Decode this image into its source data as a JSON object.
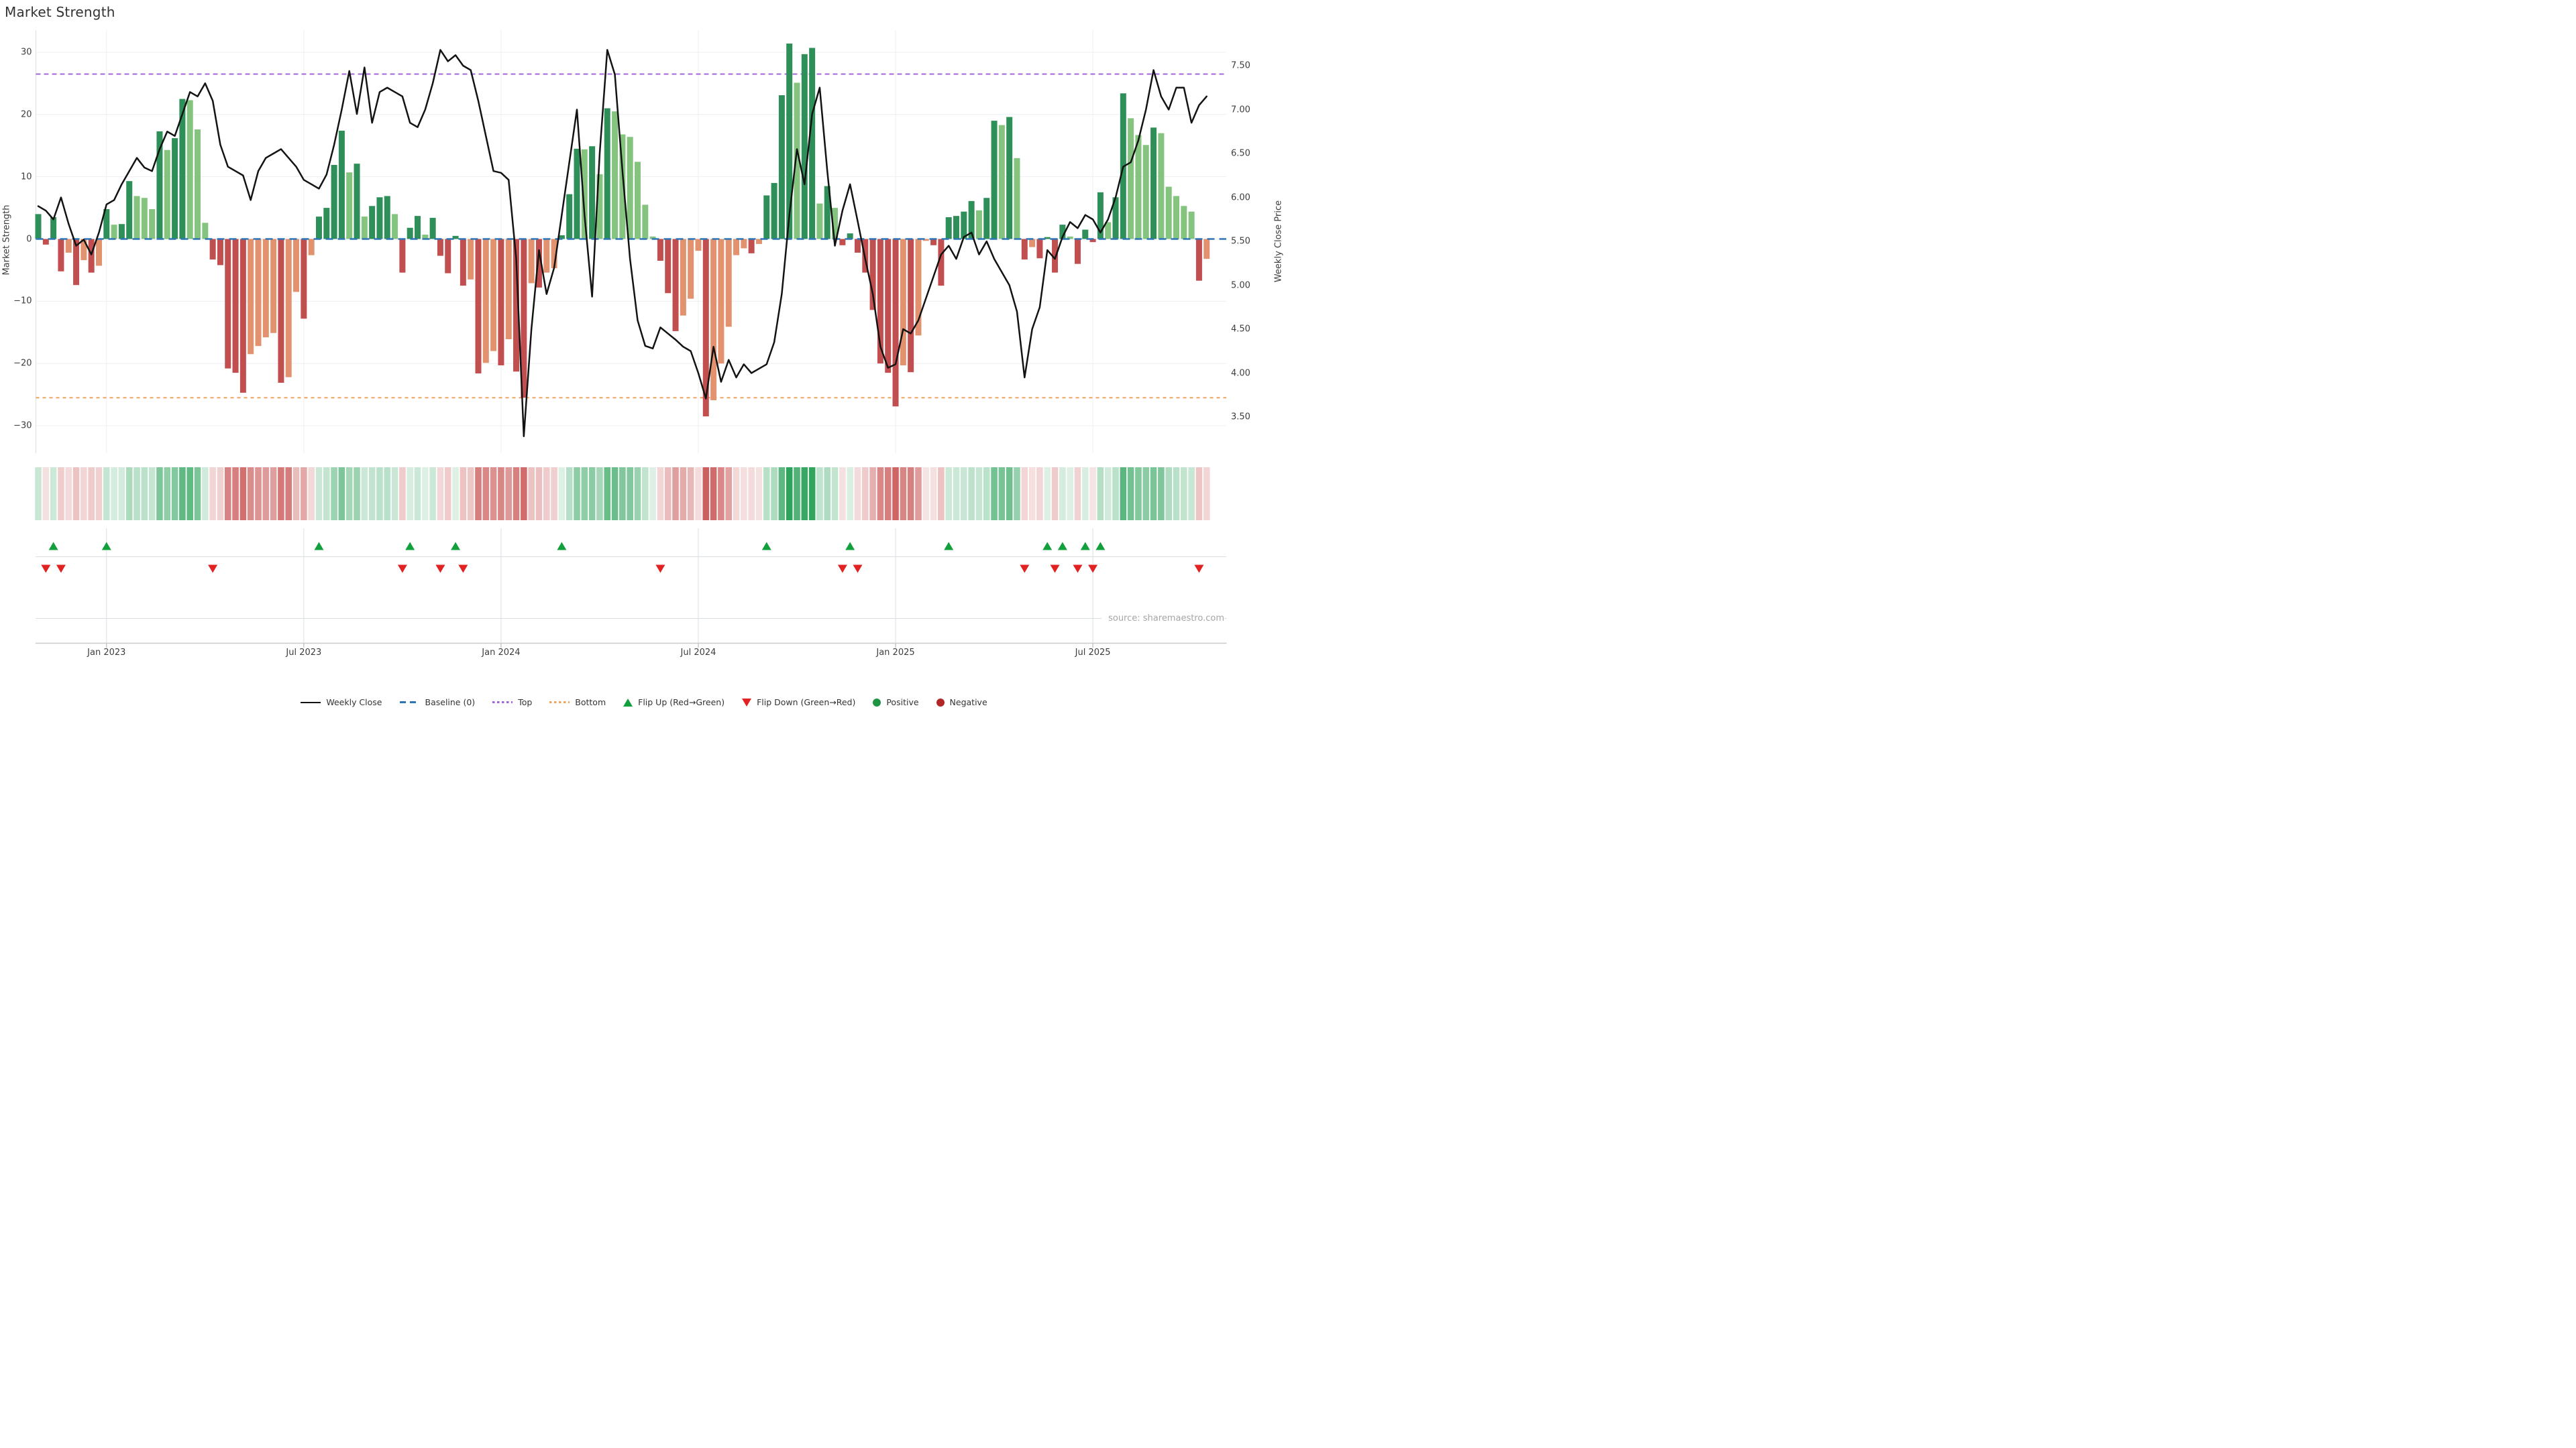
{
  "chart_data": {
    "type": "combo",
    "title": "Market Strength",
    "source": "source: sharemaestro.com",
    "start_date": "2022-10-31",
    "frequency": "weekly",
    "left_axis": {
      "label": "Market Strength",
      "ticks": [
        "30",
        "20",
        "10",
        "0",
        "−10",
        "−20",
        "−30"
      ],
      "tick_values": [
        30,
        20,
        10,
        0,
        -10,
        -20,
        -30
      ]
    },
    "right_axis": {
      "label": "Weekly Close Price",
      "ticks": [
        "7.50",
        "7.00",
        "6.50",
        "6.00",
        "5.50",
        "5.00",
        "4.50",
        "4.00",
        "3.50"
      ],
      "tick_values": [
        7.5,
        7.0,
        6.5,
        6.0,
        5.5,
        5.0,
        4.5,
        4.0,
        3.5
      ]
    },
    "x_ticks": [
      {
        "label": "Jan 2023",
        "index": 9
      },
      {
        "label": "Jul 2023",
        "index": 35
      },
      {
        "label": "Jan 2024",
        "index": 61
      },
      {
        "label": "Jul 2024",
        "index": 87
      },
      {
        "label": "Jan 2025",
        "index": 113
      },
      {
        "label": "Jul 2025",
        "index": 139
      }
    ],
    "reference_lines": {
      "baseline": 0,
      "top": 26.5,
      "bottom": -25.5
    },
    "series": {
      "strength": [
        4.0,
        -0.9,
        3.5,
        -5.2,
        -2.2,
        -7.4,
        -3.4,
        -5.4,
        -4.3,
        4.8,
        2.3,
        2.4,
        9.3,
        6.9,
        6.6,
        4.8,
        17.3,
        14.3,
        16.2,
        22.5,
        22.3,
        17.6,
        2.6,
        -3.3,
        -4.2,
        -20.8,
        -21.5,
        -24.7,
        -18.5,
        -17.2,
        -15.8,
        -15.1,
        -23.1,
        -22.2,
        -8.5,
        -12.8,
        -2.6,
        3.6,
        5.0,
        11.9,
        17.4,
        10.7,
        12.1,
        3.6,
        5.3,
        6.7,
        6.9,
        4.0,
        -5.4,
        1.8,
        3.7,
        0.7,
        3.4,
        -2.7,
        -5.5,
        0.5,
        -7.5,
        -6.5,
        -21.6,
        -19.9,
        -18.0,
        -20.3,
        -16.1,
        -21.3,
        -25.5,
        -7.1,
        -7.8,
        -5.4,
        -4.7,
        0.6,
        7.2,
        14.5,
        14.4,
        14.9,
        10.4,
        21.0,
        20.5,
        16.8,
        16.4,
        12.4,
        5.5,
        0.4,
        -3.5,
        -8.7,
        -14.8,
        -12.3,
        -9.6,
        -1.9,
        -28.5,
        -25.9,
        -20.0,
        -14.1,
        -2.6,
        -1.5,
        -2.3,
        -0.8,
        7.0,
        9.0,
        23.1,
        31.4,
        25.1,
        29.7,
        30.7,
        5.7,
        8.5,
        5.0,
        -1.0,
        0.9,
        -2.2,
        -5.4,
        -11.4,
        -20.0,
        -21.5,
        -26.9,
        -20.3,
        -21.4,
        -15.5,
        -0.3,
        -1.0,
        -7.5,
        3.5,
        3.7,
        4.4,
        6.1,
        4.6,
        6.6,
        19.0,
        18.3,
        19.6,
        13.0,
        -3.3,
        -1.3,
        -3.1,
        0.3,
        -5.4,
        2.3,
        0.4,
        -4.0,
        1.5,
        -0.5,
        7.5,
        2.7,
        6.7,
        23.4,
        19.4,
        16.7,
        15.1,
        17.9,
        17.0,
        8.4,
        6.9,
        5.3,
        4.4,
        -6.7,
        -3.2
      ],
      "weekly_close": [
        5.9,
        5.85,
        5.75,
        6.0,
        5.7,
        5.45,
        5.52,
        5.35,
        5.6,
        5.92,
        5.97,
        6.15,
        6.3,
        6.45,
        6.34,
        6.3,
        6.55,
        6.75,
        6.7,
        6.95,
        7.2,
        7.15,
        7.3,
        7.1,
        6.6,
        6.35,
        6.3,
        6.25,
        5.97,
        6.3,
        6.45,
        6.5,
        6.55,
        6.45,
        6.35,
        6.2,
        6.15,
        6.1,
        6.26,
        6.6,
        7.0,
        7.44,
        6.95,
        7.48,
        6.85,
        7.2,
        7.25,
        7.2,
        7.15,
        6.85,
        6.8,
        7.0,
        7.3,
        7.68,
        7.55,
        7.62,
        7.5,
        7.45,
        7.1,
        6.7,
        6.3,
        6.28,
        6.2,
        5.3,
        3.28,
        4.5,
        5.4,
        4.9,
        5.2,
        5.8,
        6.4,
        7.0,
        5.8,
        4.87,
        6.5,
        7.68,
        7.4,
        6.3,
        5.3,
        4.6,
        4.31,
        4.28,
        4.52,
        4.45,
        4.38,
        4.3,
        4.25,
        4.0,
        3.71,
        4.3,
        3.9,
        4.15,
        3.95,
        4.1,
        4.0,
        4.05,
        4.1,
        4.35,
        4.9,
        5.8,
        6.55,
        6.15,
        6.95,
        7.25,
        6.3,
        5.45,
        5.85,
        6.15,
        5.73,
        5.3,
        4.9,
        4.3,
        4.06,
        4.1,
        4.5,
        4.45,
        4.6,
        4.85,
        5.1,
        5.35,
        5.45,
        5.3,
        5.55,
        5.6,
        5.35,
        5.5,
        5.3,
        5.15,
        5.0,
        4.7,
        3.95,
        4.5,
        4.75,
        5.4,
        5.3,
        5.55,
        5.72,
        5.65,
        5.8,
        5.75,
        5.6,
        5.75,
        6.0,
        6.35,
        6.4,
        6.65,
        7.0,
        7.45,
        7.15,
        7.0,
        7.25,
        7.25,
        6.85,
        7.05,
        7.15
      ]
    },
    "flip_up_indices": [
      2,
      9,
      37,
      49,
      55,
      69,
      96,
      107,
      120,
      133,
      135,
      138,
      140
    ],
    "flip_down_indices": [
      1,
      3,
      23,
      48,
      53,
      56,
      82,
      106,
      108,
      130,
      134,
      137,
      139,
      153
    ],
    "legend": [
      {
        "label": "Weekly Close",
        "glyph": "line",
        "color": "#111111"
      },
      {
        "label": "Baseline (0)",
        "glyph": "dashed-line",
        "color": "#2e75b6"
      },
      {
        "label": "Top",
        "glyph": "dotted-line",
        "color": "#a266d8"
      },
      {
        "label": "Bottom",
        "glyph": "dotted-line",
        "color": "#f0a35c"
      },
      {
        "label": "Flip Up (Red→Green)",
        "glyph": "triangle-up",
        "color": "#12a03c"
      },
      {
        "label": "Flip Down (Green→Red)",
        "glyph": "triangle-down",
        "color": "#e02222"
      },
      {
        "label": "Positive",
        "glyph": "dot",
        "color": "#1e9444"
      },
      {
        "label": "Negative",
        "glyph": "dot",
        "color": "#b22626"
      }
    ],
    "colors": {
      "bar_up_strong": "#2f8f59",
      "bar_up_weak": "#84c47f",
      "bar_down_strong": "#c24f4f",
      "bar_down_weak": "#e2926f",
      "price_line": "#131313",
      "baseline": "#2e75b6",
      "top_line": "#a266d8",
      "bottom_line": "#f0a35c",
      "heat_green": "#1f9d50",
      "heat_red": "#c44545",
      "grid": "#eceff2",
      "panel_grid": "#d9dee3",
      "spine": "#c9c9c9",
      "axis_text": "#3d3d3d"
    }
  }
}
